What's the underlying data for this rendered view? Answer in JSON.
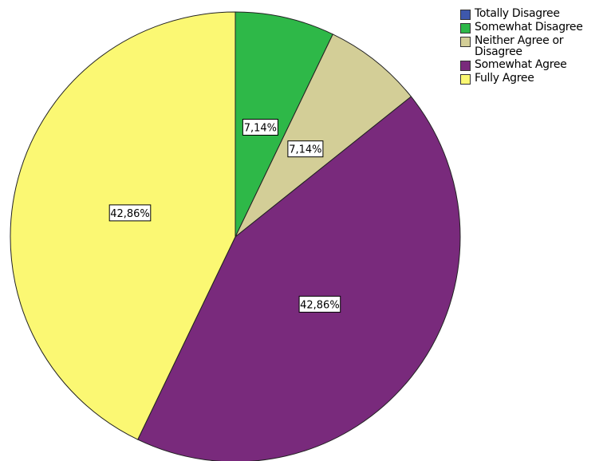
{
  "chart_data": {
    "type": "pie",
    "categories": [
      "Totally Disagree",
      "Somewhat Disagree",
      "Neither Agree or Disagree",
      "Somewhat Agree",
      "Fully Agree"
    ],
    "values": [
      0,
      7.14,
      7.14,
      42.86,
      42.86
    ],
    "data_labels": [
      "",
      "7,14%",
      "7,14%",
      "42,86%",
      "42,86%"
    ],
    "colors": [
      "#3e58ac",
      "#2eb848",
      "#d3ce97",
      "#792a7c",
      "#fbf873"
    ],
    "legend_labels": [
      "Totally Disagree",
      "Somewhat Disagree",
      "Neither Agree or\nDisagree",
      "Somewhat Agree",
      "Fully Agree"
    ],
    "legend_position": "top-right",
    "start_angle": "12 o'clock",
    "direction": "clockwise"
  }
}
